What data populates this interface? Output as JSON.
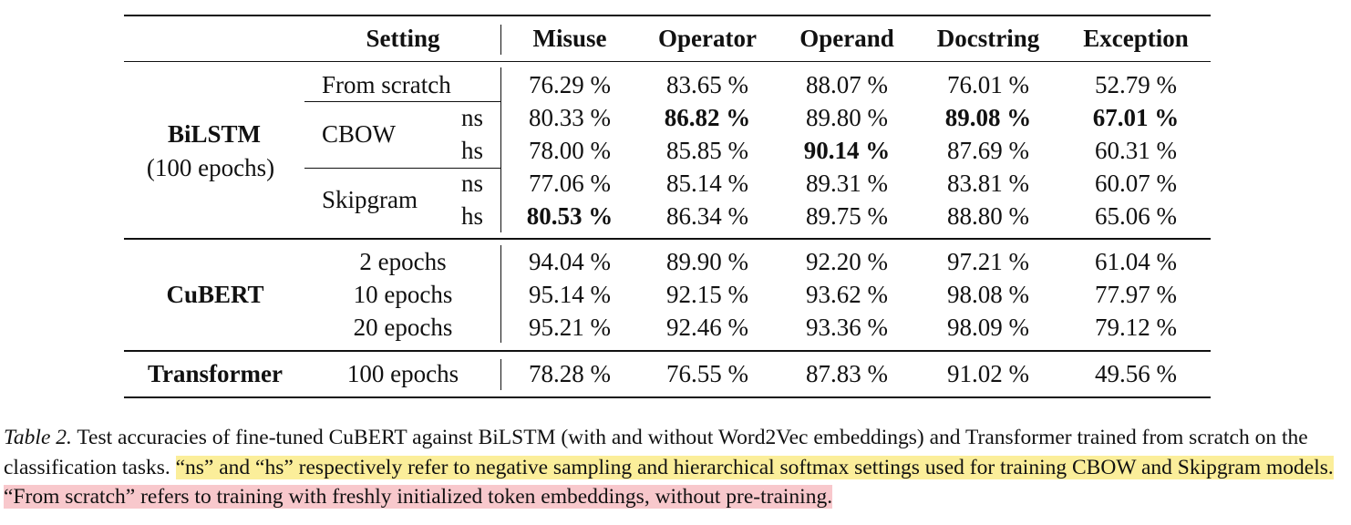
{
  "table": {
    "header": {
      "setting": "Setting",
      "columns": [
        "Misuse",
        "Operator",
        "Operand",
        "Docstring",
        "Exception"
      ]
    },
    "bilstm": {
      "model_label": "BiLSTM",
      "model_sub": "(100 epochs)",
      "from_scratch": {
        "label": "From scratch",
        "values": [
          "76.29 %",
          "83.65 %",
          "88.07 %",
          "76.01 %",
          "52.79 %"
        ]
      },
      "cbow": {
        "label": "CBOW",
        "ns": {
          "label": "ns",
          "values": [
            "80.33 %",
            "86.82 %",
            "89.80 %",
            "89.08 %",
            "67.01 %"
          ]
        },
        "hs": {
          "label": "hs",
          "values": [
            "78.00 %",
            "85.85 %",
            "90.14 %",
            "87.69 %",
            "60.31 %"
          ]
        }
      },
      "skipgram": {
        "label": "Skipgram",
        "ns": {
          "label": "ns",
          "values": [
            "77.06 %",
            "85.14 %",
            "89.31 %",
            "83.81 %",
            "60.07 %"
          ]
        },
        "hs": {
          "label": "hs",
          "values": [
            "80.53 %",
            "86.34 %",
            "89.75 %",
            "88.80 %",
            "65.06 %"
          ]
        }
      }
    },
    "cubert": {
      "model_label": "CuBERT",
      "rows": [
        {
          "label": "2 epochs",
          "values": [
            "94.04 %",
            "89.90 %",
            "92.20 %",
            "97.21 %",
            "61.04 %"
          ]
        },
        {
          "label": "10 epochs",
          "values": [
            "95.14 %",
            "92.15 %",
            "93.62 %",
            "98.08 %",
            "77.97 %"
          ]
        },
        {
          "label": "20 epochs",
          "values": [
            "95.21 %",
            "92.46 %",
            "93.36 %",
            "98.09 %",
            "79.12 %"
          ]
        }
      ]
    },
    "transformer": {
      "model_label": "Transformer",
      "row": {
        "label": "100 epochs",
        "values": [
          "78.28 %",
          "76.55 %",
          "87.83 %",
          "91.02 %",
          "49.56 %"
        ]
      }
    }
  },
  "caption": {
    "label": "Table 2.",
    "text1": "Test accuracies of fine-tuned CuBERT against BiLSTM (with and without Word2Vec embeddings) and Transformer trained from scratch on the classification tasks.",
    "highlight_yellow": "“ns” and “hs” respectively refer to negative sampling and hierarchical softmax settings used for training CBOW and Skipgram models.",
    "highlight_pink": "“From scratch” refers to training with freshly initialized token embeddings, without pre-training."
  }
}
